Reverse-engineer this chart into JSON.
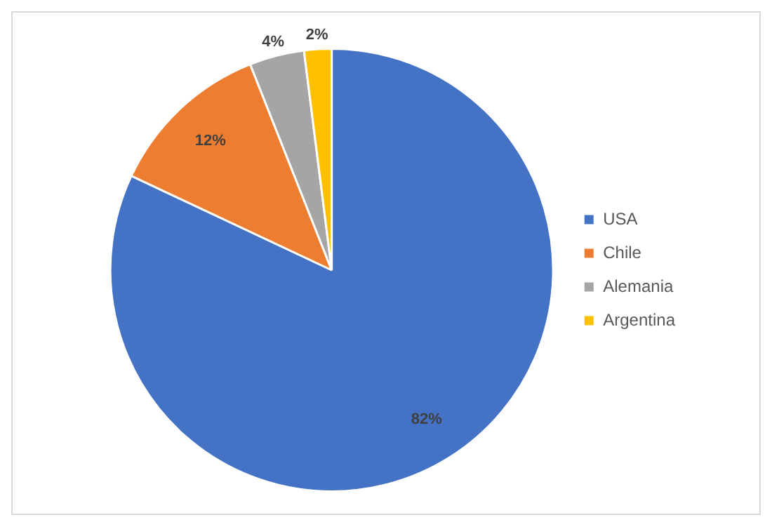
{
  "chart_data": {
    "type": "pie",
    "categories": [
      "USA",
      "Chile",
      "Alemania",
      "Argentina"
    ],
    "values": [
      82,
      12,
      4,
      2
    ],
    "value_labels": [
      "82%",
      "12%",
      "4%",
      "2%"
    ],
    "colors": [
      "#4472c4",
      "#ed7d31",
      "#a5a5a5",
      "#ffc000"
    ],
    "legend": "right"
  }
}
